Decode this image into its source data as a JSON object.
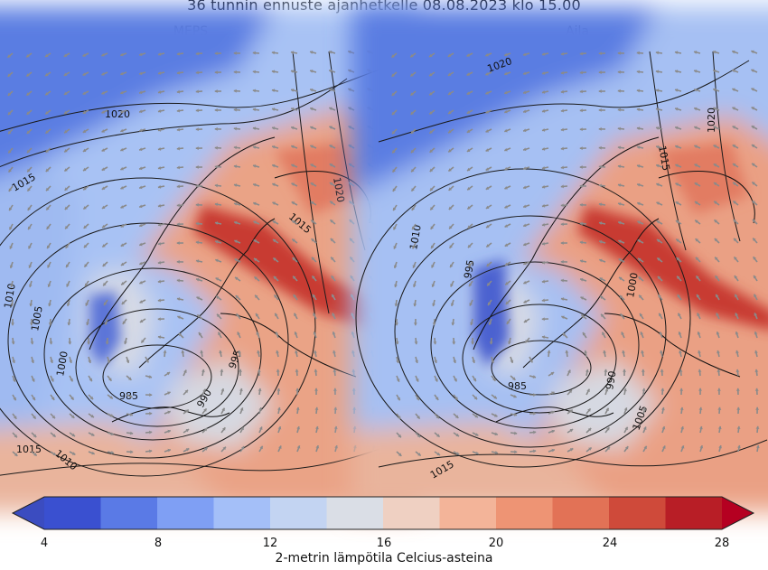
{
  "figure": {
    "suptitle": "36 tunnin ennuste ajanhetkelle 08.08.2023 klo 15.00"
  },
  "panels": [
    {
      "title": "MEPS",
      "isobar_labels": [
        "1020",
        "1015",
        "1010",
        "1005",
        "1000",
        "995",
        "990",
        "985",
        "1010",
        "1015",
        "1020",
        "1015"
      ]
    },
    {
      "title": "Aila",
      "isobar_labels": [
        "1020",
        "1015",
        "1020",
        "1010",
        "995",
        "1000",
        "990",
        "985",
        "1005",
        "1015"
      ]
    }
  ],
  "colorbar": {
    "label": "2-metrin lämpötila Celcius-asteina",
    "ticks": [
      "4",
      "8",
      "12",
      "16",
      "20",
      "24",
      "28"
    ],
    "colors": [
      "#3a50d0",
      "#5a7ae6",
      "#7f9ff4",
      "#a4bff8",
      "#c3d4f2",
      "#dadee6",
      "#efd0c2",
      "#f3b499",
      "#ee9474",
      "#e27256",
      "#cf4a3a",
      "#b81e26",
      "#b50021",
      "#3b4cc0"
    ]
  },
  "map_colors": {
    "sea_cold": "#5f82e2",
    "sea_cool": "#9db8f2",
    "neutral": "#d5d9e3",
    "land_warm": "#eaa187",
    "land_hot": "#de6a52",
    "land_very_hot": "#c73a34",
    "isobar": "#1a1a1a",
    "arrow": "#8a8a8a"
  }
}
